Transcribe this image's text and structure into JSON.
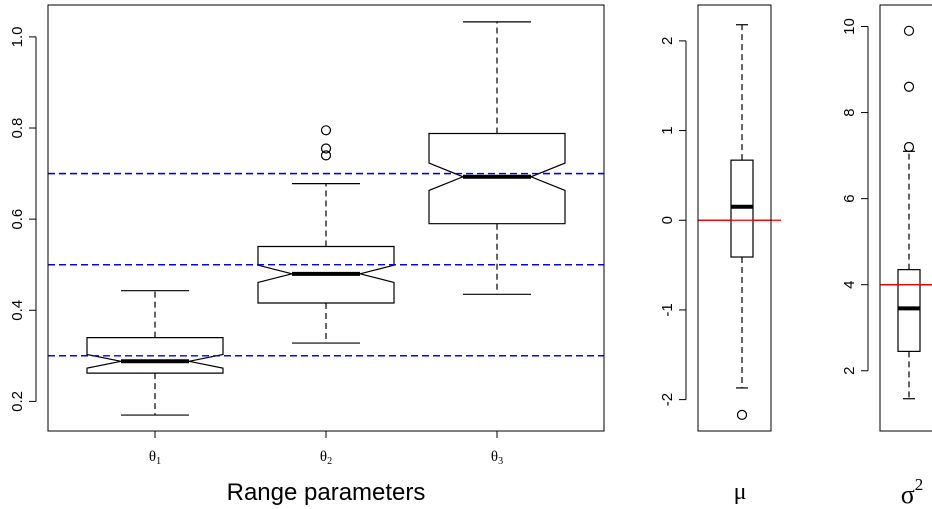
{
  "chart_data": [
    {
      "type": "boxplot",
      "xlabel": "Range parameters",
      "ylabel": "",
      "ylim": [
        0.135,
        1.07
      ],
      "yticks": [
        "0.2",
        "0.4",
        "0.6",
        "0.8",
        "1.0"
      ],
      "notched": true,
      "categories": [
        "θ1",
        "θ2",
        "θ3"
      ],
      "boxes": [
        {
          "label": "θ",
          "sub": "1",
          "min": 0.17,
          "q1": 0.262,
          "median": 0.288,
          "q3": 0.34,
          "max": 0.443,
          "notch_low": 0.273,
          "notch_high": 0.303,
          "outliers": []
        },
        {
          "label": "θ",
          "sub": "2",
          "min": 0.328,
          "q1": 0.416,
          "median": 0.48,
          "q3": 0.54,
          "max": 0.678,
          "notch_low": 0.461,
          "notch_high": 0.499,
          "outliers": [
            0.74,
            0.755,
            0.795
          ]
        },
        {
          "label": "θ",
          "sub": "3",
          "min": 0.435,
          "q1": 0.59,
          "median": 0.693,
          "q3": 0.788,
          "max": 1.033,
          "notch_low": 0.663,
          "notch_high": 0.723,
          "outliers": []
        }
      ],
      "reference_lines": [
        {
          "y": 0.3,
          "color": "#0000ee",
          "style": "dashed"
        },
        {
          "y": 0.5,
          "color": "#0000ee",
          "style": "dashed"
        },
        {
          "y": 0.7,
          "color": "#0000ee",
          "style": "dashed"
        }
      ]
    },
    {
      "type": "boxplot",
      "xlabel": "μ",
      "ylabel": "",
      "ylim": [
        -2.35,
        2.4
      ],
      "yticks": [
        "-2",
        "-1",
        "0",
        "1",
        "2"
      ],
      "notched": false,
      "boxes": [
        {
          "min": -1.87,
          "q1": -0.41,
          "median": 0.15,
          "q3": 0.67,
          "max": 2.18,
          "outliers": [
            -2.17
          ]
        }
      ],
      "reference_lines": [
        {
          "y": 0,
          "color": "#ee0000",
          "style": "solid"
        }
      ]
    },
    {
      "type": "boxplot",
      "xlabel": "σ",
      "xlabel_sup": "2",
      "ylabel": "",
      "ylim": [
        0.6,
        10.5
      ],
      "yticks": [
        "2",
        "4",
        "6",
        "8",
        "10"
      ],
      "notched": false,
      "boxes": [
        {
          "min": 1.35,
          "q1": 2.45,
          "median": 3.45,
          "q3": 4.35,
          "max": 7.1,
          "outliers": [
            7.2,
            8.6,
            9.9
          ]
        }
      ],
      "reference_lines": [
        {
          "y": 4,
          "color": "#ee0000",
          "style": "solid"
        }
      ]
    }
  ]
}
